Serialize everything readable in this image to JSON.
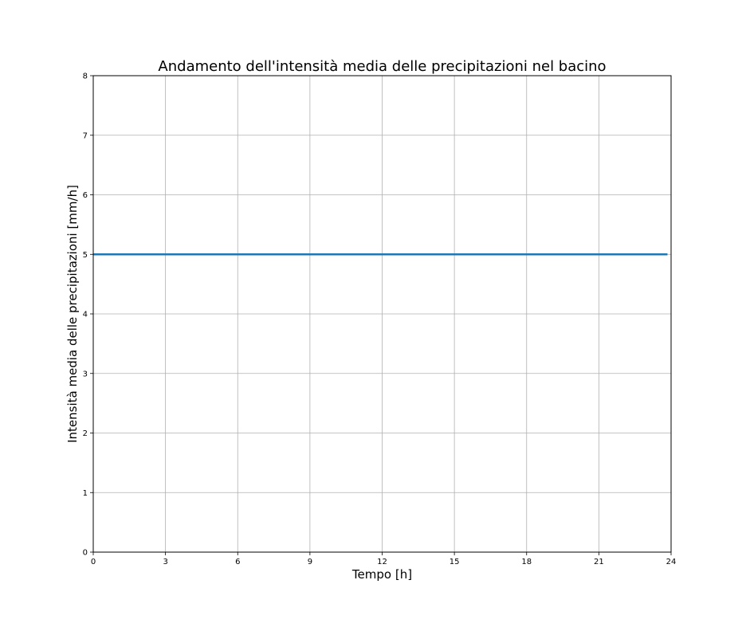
{
  "chart_data": {
    "type": "line",
    "title": "Andamento dell'intensità media delle precipitazioni nel bacino",
    "xlabel": "Tempo [h]",
    "ylabel": "Intensità media delle precipitazioni [mm/h]",
    "xlim": [
      0,
      24
    ],
    "ylim": [
      0,
      8
    ],
    "xticks": [
      0,
      3,
      6,
      9,
      12,
      15,
      18,
      21,
      24
    ],
    "yticks": [
      0,
      1,
      2,
      3,
      4,
      5,
      6,
      7,
      8
    ],
    "grid": true,
    "legend": null,
    "series": [
      {
        "color": "#1f77b4",
        "x": [
          0,
          23.85
        ],
        "y": [
          5,
          5
        ]
      }
    ]
  },
  "colors": {
    "grid": "#b0b0b0",
    "axes": "#000000"
  }
}
